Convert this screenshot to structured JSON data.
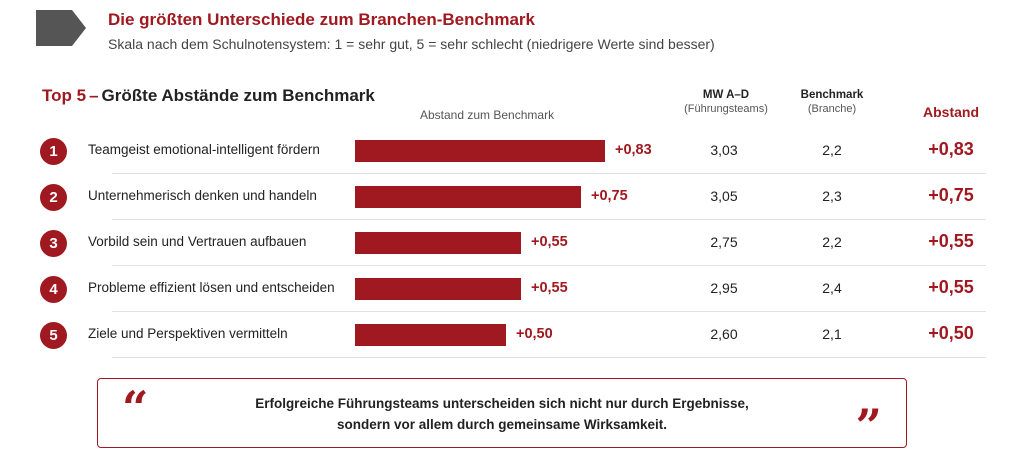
{
  "header": {
    "title": "Die größten Unterschiede zum Branchen-Benchmark",
    "subtitle": "Skala nach dem Schulnotensystem: 1 = sehr gut, 5 = sehr schlecht (niedrigere Werte sind besser)"
  },
  "section": {
    "title_prefix": "Top 5",
    "title_dash": "–",
    "title_rest": "Größte Abstände zum Benchmark"
  },
  "columns": {
    "bar_label": "Abstand zum Benchmark",
    "mw_title": "MW A–D",
    "mw_sub": "(Führungsteams)",
    "bm_title": "Benchmark",
    "bm_sub": "(Branche)",
    "diff_title": "Abstand"
  },
  "chart_data": {
    "type": "bar",
    "orientation": "horizontal",
    "title": "Top 5 – Größte Abstände zum Benchmark",
    "xlabel": "Abstand zum Benchmark",
    "categories": [
      "Teamgeist emotional-intelligent fördern",
      "Unternehmerisch denken und handeln",
      "Vorbild sein und Vertrauen aufbauen",
      "Probleme effizient lösen und entscheiden",
      "Ziele und Perspektiven vermitteln"
    ],
    "values": [
      0.83,
      0.75,
      0.55,
      0.55,
      0.5
    ],
    "xlim": [
      0,
      0.83
    ],
    "rows": [
      {
        "rank": "1",
        "label": "Teamgeist emotional-intelligent fördern",
        "value": 0.83,
        "value_label": "+0,83",
        "mw": "3,03",
        "benchmark": "2,2",
        "diff": "+0,83"
      },
      {
        "rank": "2",
        "label": "Unternehmerisch denken und handeln",
        "value": 0.75,
        "value_label": "+0,75",
        "mw": "3,05",
        "benchmark": "2,3",
        "diff": "+0,75"
      },
      {
        "rank": "3",
        "label": "Vorbild sein und Vertrauen aufbauen",
        "value": 0.55,
        "value_label": "+0,55",
        "mw": "2,75",
        "benchmark": "2,2",
        "diff": "+0,55"
      },
      {
        "rank": "4",
        "label": "Probleme effizient lösen und entscheiden",
        "value": 0.55,
        "value_label": "+0,55",
        "mw": "2,95",
        "benchmark": "2,4",
        "diff": "+0,55"
      },
      {
        "rank": "5",
        "label": "Ziele und Perspektiven vermitteln",
        "value": 0.5,
        "value_label": "+0,50",
        "mw": "2,60",
        "benchmark": "2,1",
        "diff": "+0,50"
      }
    ],
    "bar_color": "#a01920"
  },
  "quote": {
    "open": "“",
    "close": "”",
    "line1": "Erfolgreiche Führungsteams unterscheiden sich nicht nur durch Ergebnisse,",
    "line2": "sondern vor allem durch gemeinsame Wirksamkeit."
  },
  "colors": {
    "accent": "#a01920",
    "header_shape": "#555555"
  }
}
